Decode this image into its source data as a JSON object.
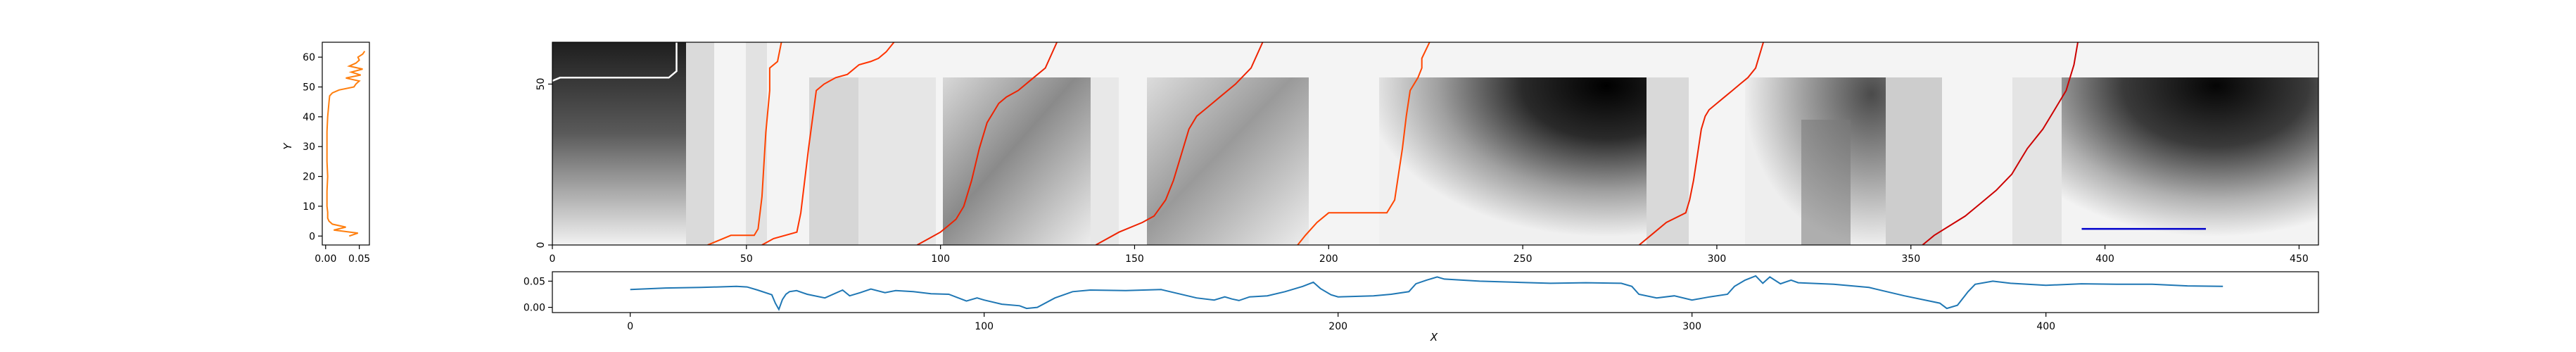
{
  "chart_data": [
    {
      "name": "left-marginal",
      "type": "line",
      "orientation": "horizontal-values",
      "xlabel": "",
      "ylabel": "Y",
      "xlim": [
        -0.005,
        0.065
      ],
      "ylim": [
        -3,
        65
      ],
      "xticks": [
        0.0,
        0.05
      ],
      "xtick_labels": [
        "0.00",
        "0.05"
      ],
      "yticks": [
        0,
        10,
        20,
        30,
        40,
        50,
        60
      ],
      "ytick_labels": [
        "0",
        "10",
        "20",
        "30",
        "40",
        "50",
        "60"
      ],
      "color": "#ff7f0e",
      "series": [
        {
          "y": [
            0,
            1,
            2,
            3,
            4,
            5,
            6,
            8,
            10,
            15,
            20,
            25,
            30,
            35,
            40,
            45,
            47,
            48,
            49,
            50,
            51,
            52,
            53,
            54,
            55,
            56,
            57,
            58,
            59,
            60,
            61,
            62
          ],
          "x": [
            0.035,
            0.048,
            0.012,
            0.03,
            0.01,
            0.005,
            0.003,
            0.003,
            0.002,
            0.002,
            0.003,
            0.002,
            0.002,
            0.002,
            0.003,
            0.005,
            0.006,
            0.01,
            0.02,
            0.042,
            0.045,
            0.05,
            0.03,
            0.052,
            0.038,
            0.055,
            0.035,
            0.045,
            0.05,
            0.048,
            0.055,
            0.058
          ]
        }
      ]
    },
    {
      "name": "heatmap",
      "type": "heatmap",
      "xlabel": "",
      "ylabel": "",
      "xlim": [
        0,
        455
      ],
      "ylim": [
        0,
        63
      ],
      "xticks": [
        0,
        50,
        100,
        150,
        200,
        250,
        300,
        350,
        400,
        450
      ],
      "xtick_labels": [
        "0",
        "50",
        "100",
        "150",
        "200",
        "250",
        "300",
        "350",
        "400",
        "450"
      ],
      "yticks": [
        0,
        50
      ],
      "ytick_labels": [
        "0",
        "50"
      ],
      "colormap": "gray",
      "white_path": {
        "x": [
          0,
          2,
          30,
          32,
          32
        ],
        "y": [
          51,
          52,
          52,
          54,
          63
        ],
        "color": "#ffffff"
      },
      "blue_segment": {
        "x": [
          394,
          426
        ],
        "y": [
          5,
          5
        ],
        "color": "#0000cc"
      },
      "red_paths": [
        {
          "color": "#ff4500",
          "x": [
            40,
            46,
            52,
            53,
            54,
            55,
            56,
            56,
            58,
            59
          ],
          "y": [
            0,
            3,
            3,
            5,
            15,
            35,
            48,
            55,
            57,
            63
          ]
        },
        {
          "color": "#ff3300",
          "x": [
            54,
            57,
            63,
            64,
            66,
            68,
            70,
            73,
            76,
            79,
            82,
            84,
            86,
            88
          ],
          "y": [
            0,
            2,
            4,
            10,
            30,
            48,
            50,
            52,
            53,
            56,
            57,
            58,
            60,
            63
          ]
        },
        {
          "color": "#ee2200",
          "x": [
            94,
            97,
            100,
            102,
            104,
            106,
            108,
            110,
            112,
            114,
            115,
            117,
            120,
            124,
            127,
            130
          ],
          "y": [
            0,
            2,
            4,
            6,
            8,
            12,
            20,
            30,
            38,
            42,
            44,
            46,
            48,
            52,
            55,
            63
          ]
        },
        {
          "color": "#ee2200",
          "x": [
            140,
            146,
            152,
            155,
            158,
            160,
            162,
            164,
            166,
            168,
            170,
            172,
            176,
            180,
            183
          ],
          "y": [
            0,
            4,
            7,
            9,
            14,
            20,
            28,
            36,
            40,
            42,
            44,
            46,
            50,
            55,
            63
          ]
        },
        {
          "color": "#ff4500",
          "x": [
            192,
            194,
            197,
            200,
            215,
            217,
            218,
            219,
            220,
            221,
            223,
            224,
            224,
            226
          ],
          "y": [
            0,
            3,
            7,
            10,
            10,
            14,
            22,
            30,
            40,
            48,
            52,
            55,
            58,
            63
          ]
        },
        {
          "color": "#ee2200",
          "x": [
            280,
            284,
            287,
            292,
            293,
            294,
            295,
            296,
            297,
            298,
            300,
            302,
            304,
            306,
            308,
            310,
            312
          ],
          "y": [
            0,
            4,
            7,
            10,
            14,
            20,
            28,
            36,
            40,
            42,
            44,
            46,
            48,
            50,
            52,
            55,
            63
          ]
        },
        {
          "color": "#cc0000",
          "x": [
            353,
            356,
            360,
            364,
            368,
            372,
            376,
            378,
            380,
            382,
            384,
            386,
            388,
            390,
            391,
            392,
            393
          ],
          "y": [
            0,
            3,
            6,
            9,
            13,
            17,
            22,
            26,
            30,
            33,
            36,
            40,
            44,
            48,
            52,
            56,
            63
          ]
        }
      ]
    },
    {
      "name": "bottom-marginal",
      "type": "line",
      "xlabel": "X",
      "ylabel": "",
      "xlim": [
        -22,
        477
      ],
      "ylim": [
        -0.01,
        0.068
      ],
      "xticks": [
        0,
        100,
        200,
        300,
        400
      ],
      "xtick_labels": [
        "0",
        "100",
        "200",
        "300",
        "400"
      ],
      "yticks": [
        0.0,
        0.05
      ],
      "ytick_labels": [
        "0.00",
        "0.05"
      ],
      "color": "#1f77b4",
      "series": [
        {
          "x": [
            0,
            10,
            20,
            30,
            33,
            36,
            40,
            41,
            42,
            43,
            44,
            45,
            47,
            50,
            55,
            60,
            62,
            65,
            68,
            72,
            75,
            80,
            85,
            90,
            95,
            98,
            100,
            105,
            110,
            112,
            115,
            120,
            125,
            130,
            140,
            150,
            160,
            165,
            168,
            170,
            172,
            175,
            180,
            185,
            190,
            193,
            195,
            198,
            200,
            210,
            215,
            220,
            222,
            225,
            228,
            230,
            240,
            250,
            260,
            270,
            280,
            283,
            285,
            290,
            295,
            300,
            305,
            310,
            312,
            315,
            318,
            320,
            322,
            325,
            328,
            330,
            340,
            350,
            360,
            370,
            372,
            375,
            378,
            380,
            385,
            390,
            400,
            410,
            420,
            430,
            440,
            450
          ],
          "y": [
            0.034,
            0.037,
            0.038,
            0.04,
            0.039,
            0.033,
            0.024,
            0.008,
            -0.004,
            0.015,
            0.025,
            0.03,
            0.032,
            0.025,
            0.018,
            0.033,
            0.022,
            0.028,
            0.035,
            0.028,
            0.032,
            0.03,
            0.026,
            0.025,
            0.012,
            0.018,
            0.014,
            0.006,
            0.003,
            -0.002,
            0.0,
            0.018,
            0.03,
            0.033,
            0.032,
            0.034,
            0.018,
            0.014,
            0.02,
            0.016,
            0.013,
            0.02,
            0.022,
            0.03,
            0.04,
            0.048,
            0.036,
            0.024,
            0.02,
            0.022,
            0.025,
            0.03,
            0.045,
            0.052,
            0.058,
            0.054,
            0.05,
            0.048,
            0.046,
            0.047,
            0.046,
            0.04,
            0.025,
            0.018,
            0.022,
            0.014,
            0.02,
            0.025,
            0.04,
            0.052,
            0.06,
            0.046,
            0.058,
            0.045,
            0.052,
            0.047,
            0.044,
            0.038,
            0.022,
            0.008,
            -0.002,
            0.004,
            0.03,
            0.044,
            0.05,
            0.046,
            0.042,
            0.045,
            0.044,
            0.044,
            0.041,
            0.04
          ]
        }
      ]
    }
  ]
}
